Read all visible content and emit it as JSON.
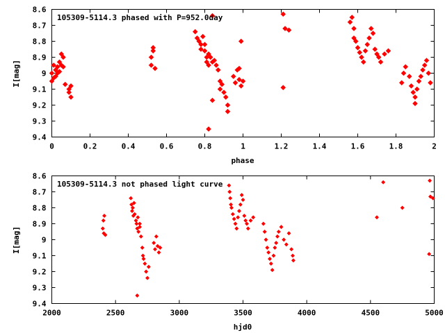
{
  "chart_data": [
    {
      "type": "scatter",
      "title": "105309-5114.3 phased with P=952.0day",
      "xlabel": "phase",
      "ylabel": "I[mag]",
      "xlim": [
        0,
        2
      ],
      "ylim": [
        8.6,
        9.4
      ],
      "y_inverted": true,
      "grid": false,
      "marker_color": "#ff0000",
      "xticks": [
        "0",
        "0.2",
        "0.4",
        "0.6",
        "0.8",
        "1",
        "1.2",
        "1.4",
        "1.6",
        "1.8",
        "2"
      ],
      "yticks": [
        "8.6",
        "8.7",
        "8.8",
        "8.9",
        "9",
        "9.1",
        "9.2",
        "9.3",
        "9.4"
      ],
      "points": [
        [
          0.0,
          9.0
        ],
        [
          0.0,
          9.05
        ],
        [
          0.01,
          9.03
        ],
        [
          0.01,
          8.95
        ],
        [
          0.02,
          9.02
        ],
        [
          0.02,
          8.98
        ],
        [
          0.03,
          9.0
        ],
        [
          0.03,
          8.96
        ],
        [
          0.04,
          8.93
        ],
        [
          0.04,
          8.99
        ],
        [
          0.05,
          8.88
        ],
        [
          0.05,
          8.95
        ],
        [
          0.06,
          8.9
        ],
        [
          0.06,
          8.96
        ],
        [
          0.07,
          9.07
        ],
        [
          0.09,
          9.1
        ],
        [
          0.09,
          9.12
        ],
        [
          0.1,
          9.08
        ],
        [
          0.1,
          9.15
        ],
        [
          0.52,
          8.9
        ],
        [
          0.52,
          8.95
        ],
        [
          0.53,
          8.86
        ],
        [
          0.53,
          8.84
        ],
        [
          0.54,
          8.97
        ],
        [
          0.75,
          8.74
        ],
        [
          0.76,
          8.78
        ],
        [
          0.77,
          8.8
        ],
        [
          0.78,
          8.82
        ],
        [
          0.78,
          8.85
        ],
        [
          0.79,
          8.77
        ],
        [
          0.8,
          8.82
        ],
        [
          0.8,
          8.86
        ],
        [
          0.81,
          8.9
        ],
        [
          0.81,
          8.93
        ],
        [
          0.82,
          8.88
        ],
        [
          0.82,
          8.95
        ],
        [
          0.83,
          8.9
        ],
        [
          0.84,
          8.93
        ],
        [
          0.85,
          8.92
        ],
        [
          0.86,
          8.95
        ],
        [
          0.87,
          8.98
        ],
        [
          0.88,
          9.05
        ],
        [
          0.88,
          9.1
        ],
        [
          0.89,
          9.07
        ],
        [
          0.9,
          9.12
        ],
        [
          0.91,
          9.15
        ],
        [
          0.92,
          9.2
        ],
        [
          0.92,
          9.24
        ],
        [
          0.82,
          9.35
        ],
        [
          0.84,
          9.17
        ],
        [
          0.84,
          8.64
        ],
        [
          0.95,
          9.02
        ],
        [
          0.96,
          9.06
        ],
        [
          0.97,
          8.98
        ],
        [
          0.98,
          9.04
        ],
        [
          0.99,
          9.08
        ],
        [
          1.0,
          9.05
        ],
        [
          0.99,
          8.8
        ],
        [
          0.98,
          8.97
        ],
        [
          1.21,
          8.63
        ],
        [
          1.21,
          9.09
        ],
        [
          1.22,
          8.72
        ],
        [
          1.24,
          8.73
        ],
        [
          1.56,
          8.68
        ],
        [
          1.57,
          8.65
        ],
        [
          1.58,
          8.72
        ],
        [
          1.58,
          8.78
        ],
        [
          1.59,
          8.8
        ],
        [
          1.6,
          8.84
        ],
        [
          1.61,
          8.87
        ],
        [
          1.62,
          8.9
        ],
        [
          1.63,
          8.93
        ],
        [
          1.64,
          8.86
        ],
        [
          1.65,
          8.82
        ],
        [
          1.66,
          8.78
        ],
        [
          1.67,
          8.72
        ],
        [
          1.68,
          8.75
        ],
        [
          1.69,
          8.85
        ],
        [
          1.7,
          8.88
        ],
        [
          1.71,
          8.9
        ],
        [
          1.72,
          8.93
        ],
        [
          1.74,
          8.88
        ],
        [
          1.76,
          8.86
        ],
        [
          1.83,
          9.06
        ],
        [
          1.84,
          9.0
        ],
        [
          1.85,
          8.96
        ],
        [
          1.87,
          9.02
        ],
        [
          1.88,
          9.08
        ],
        [
          1.89,
          9.12
        ],
        [
          1.9,
          9.15
        ],
        [
          1.9,
          9.19
        ],
        [
          1.91,
          9.1
        ],
        [
          1.92,
          9.05
        ],
        [
          1.93,
          9.02
        ],
        [
          1.94,
          8.98
        ],
        [
          1.95,
          8.95
        ],
        [
          1.96,
          8.92
        ],
        [
          1.97,
          9.0
        ],
        [
          1.98,
          9.06
        ]
      ]
    },
    {
      "type": "scatter",
      "title": "105309-5114.3 not phased light curve",
      "xlabel": "hjd0",
      "ylabel": "I[mag]",
      "xlim": [
        2000,
        5000
      ],
      "ylim": [
        8.6,
        9.4
      ],
      "y_inverted": true,
      "grid": false,
      "marker_color": "#ff0000",
      "xticks": [
        "2000",
        "2500",
        "3000",
        "3500",
        "4000",
        "4500",
        "5000"
      ],
      "yticks": [
        "8.6",
        "8.7",
        "8.8",
        "8.9",
        "9",
        "9.1",
        "9.2",
        "9.3",
        "9.4"
      ],
      "points": [
        [
          2400,
          8.93
        ],
        [
          2405,
          8.88
        ],
        [
          2408,
          8.96
        ],
        [
          2412,
          8.85
        ],
        [
          2420,
          8.97
        ],
        [
          2620,
          8.74
        ],
        [
          2625,
          8.78
        ],
        [
          2630,
          8.82
        ],
        [
          2635,
          8.8
        ],
        [
          2640,
          8.85
        ],
        [
          2645,
          8.77
        ],
        [
          2650,
          8.84
        ],
        [
          2660,
          8.88
        ],
        [
          2665,
          8.9
        ],
        [
          2670,
          8.93
        ],
        [
          2675,
          8.86
        ],
        [
          2680,
          8.95
        ],
        [
          2690,
          8.92
        ],
        [
          2700,
          8.98
        ],
        [
          2710,
          9.05
        ],
        [
          2715,
          9.1
        ],
        [
          2720,
          9.12
        ],
        [
          2730,
          9.15
        ],
        [
          2740,
          9.2
        ],
        [
          2750,
          9.24
        ],
        [
          2670,
          9.35
        ],
        [
          2760,
          9.17
        ],
        [
          2690,
          8.9
        ],
        [
          2800,
          9.02
        ],
        [
          2810,
          9.06
        ],
        [
          2820,
          8.98
        ],
        [
          2830,
          9.04
        ],
        [
          2840,
          9.08
        ],
        [
          2850,
          9.05
        ],
        [
          3390,
          8.66
        ],
        [
          3395,
          8.7
        ],
        [
          3400,
          8.74
        ],
        [
          3405,
          8.78
        ],
        [
          3410,
          8.8
        ],
        [
          3420,
          8.84
        ],
        [
          3430,
          8.87
        ],
        [
          3440,
          8.9
        ],
        [
          3450,
          8.93
        ],
        [
          3460,
          8.86
        ],
        [
          3470,
          8.82
        ],
        [
          3480,
          8.78
        ],
        [
          3490,
          8.72
        ],
        [
          3500,
          8.75
        ],
        [
          3510,
          8.85
        ],
        [
          3520,
          8.88
        ],
        [
          3530,
          8.9
        ],
        [
          3540,
          8.93
        ],
        [
          3560,
          8.88
        ],
        [
          3580,
          8.86
        ],
        [
          3660,
          8.9
        ],
        [
          3670,
          8.95
        ],
        [
          3680,
          9.0
        ],
        [
          3690,
          9.05
        ],
        [
          3700,
          9.08
        ],
        [
          3710,
          9.12
        ],
        [
          3720,
          9.15
        ],
        [
          3730,
          9.19
        ],
        [
          3740,
          9.1
        ],
        [
          3750,
          9.05
        ],
        [
          3760,
          9.02
        ],
        [
          3770,
          8.98
        ],
        [
          3780,
          8.95
        ],
        [
          3800,
          8.92
        ],
        [
          3820,
          9.0
        ],
        [
          3840,
          9.03
        ],
        [
          3860,
          8.96
        ],
        [
          3880,
          9.06
        ],
        [
          3890,
          9.1
        ],
        [
          3895,
          9.13
        ],
        [
          4550,
          8.86
        ],
        [
          4600,
          8.64
        ],
        [
          4750,
          8.8
        ],
        [
          4960,
          9.09
        ],
        [
          4965,
          8.63
        ],
        [
          4970,
          8.73
        ],
        [
          4990,
          8.74
        ]
      ]
    }
  ]
}
